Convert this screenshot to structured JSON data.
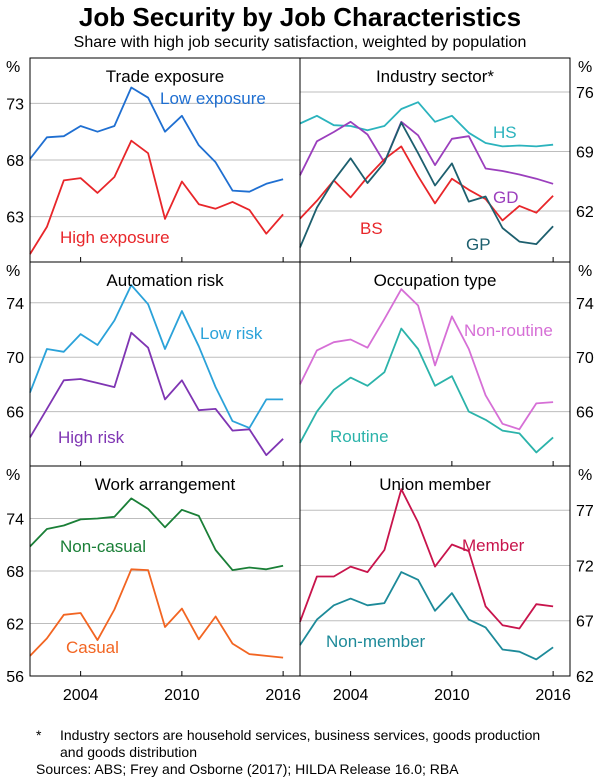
{
  "title": "Job Security by Job Characteristics",
  "subtitle": "Share with high job security satisfaction, weighted by population",
  "unit": "%",
  "x_axis": {
    "ticks": [
      2004,
      2010,
      2016
    ],
    "range": [
      2001,
      2017
    ]
  },
  "footnote_mark": "*",
  "footnote": "Industry sectors are household services, business services, goods production and goods distribution",
  "source": "Sources: ABS; Frey and Osborne (2017); HILDA Release 16.0; RBA",
  "chart_data": [
    {
      "type": "line",
      "title": "Trade exposure",
      "ylim": [
        59,
        77
      ],
      "yticks": [
        63,
        68,
        73
      ],
      "axis": "left",
      "x": [
        2001,
        2002,
        2003,
        2004,
        2005,
        2006,
        2007,
        2008,
        2009,
        2010,
        2011,
        2012,
        2013,
        2014,
        2015,
        2016
      ],
      "series": [
        {
          "name": "Low exposure",
          "color": "#1f6fd1",
          "values": [
            68.1,
            70.0,
            70.1,
            71.0,
            70.5,
            71.0,
            74.4,
            73.5,
            70.5,
            71.9,
            69.3,
            67.8,
            65.3,
            65.2,
            65.9,
            66.3
          ]
        },
        {
          "name": "High exposure",
          "color": "#e8262a",
          "values": [
            59.7,
            62.1,
            66.2,
            66.4,
            65.1,
            66.5,
            69.7,
            68.6,
            62.8,
            66.1,
            64.1,
            63.7,
            64.3,
            63.6,
            61.5,
            63.2
          ]
        }
      ]
    },
    {
      "type": "line",
      "title": "Industry sector",
      "ylim": [
        56,
        80
      ],
      "yticks": [
        62,
        69,
        76
      ],
      "axis": "right",
      "x": [
        2001,
        2002,
        2003,
        2004,
        2005,
        2006,
        2007,
        2008,
        2009,
        2010,
        2011,
        2012,
        2013,
        2014,
        2015,
        2016
      ],
      "series": [
        {
          "name": "HS",
          "color": "#2bb3bd",
          "values": [
            72.3,
            73.2,
            72.1,
            72.0,
            71.5,
            72.0,
            74.0,
            74.8,
            72.5,
            73.2,
            71.2,
            70.0,
            69.6,
            69.7,
            69.6,
            69.8
          ]
        },
        {
          "name": "GD",
          "color": "#9b3fbd",
          "values": [
            66.2,
            70.2,
            71.3,
            72.5,
            71.0,
            67.7,
            72.5,
            70.9,
            67.4,
            70.5,
            70.8,
            67.0,
            66.7,
            66.3,
            65.8,
            65.2
          ]
        },
        {
          "name": "BS",
          "color": "#e8262a",
          "values": [
            61.1,
            63.2,
            65.6,
            63.6,
            66.0,
            68.1,
            69.6,
            66.1,
            62.9,
            65.8,
            64.5,
            63.4,
            60.9,
            62.6,
            61.8,
            63.8
          ]
        },
        {
          "name": "GP",
          "color": "#1d5f6e",
          "values": [
            57.7,
            62.4,
            65.6,
            68.2,
            65.3,
            67.7,
            72.4,
            68.8,
            65.0,
            67.6,
            63.1,
            63.7,
            60.0,
            58.4,
            58.1,
            60.2
          ]
        }
      ]
    },
    {
      "type": "line",
      "title": "Automation risk",
      "ylim": [
        62,
        77
      ],
      "yticks": [
        66,
        70,
        74
      ],
      "axis": "left",
      "x": [
        2001,
        2002,
        2003,
        2004,
        2005,
        2006,
        2007,
        2008,
        2009,
        2010,
        2011,
        2012,
        2013,
        2014,
        2015,
        2016
      ],
      "series": [
        {
          "name": "Low risk",
          "color": "#2ba2d9",
          "values": [
            67.4,
            70.6,
            70.4,
            71.7,
            70.9,
            72.7,
            75.3,
            73.9,
            70.6,
            73.4,
            70.8,
            67.8,
            65.3,
            64.8,
            66.9,
            66.9
          ]
        },
        {
          "name": "High risk",
          "color": "#7f35b3",
          "values": [
            64.1,
            66.2,
            68.3,
            68.4,
            68.1,
            67.8,
            71.8,
            70.7,
            66.9,
            68.3,
            66.1,
            66.2,
            64.6,
            64.7,
            62.8,
            64.0
          ]
        }
      ]
    },
    {
      "type": "line",
      "title": "Occupation type",
      "ylim": [
        62,
        77
      ],
      "yticks": [
        66,
        70,
        74
      ],
      "axis": "right",
      "x": [
        2001,
        2002,
        2003,
        2004,
        2005,
        2006,
        2007,
        2008,
        2009,
        2010,
        2011,
        2012,
        2013,
        2014,
        2015,
        2016
      ],
      "series": [
        {
          "name": "Non-routine",
          "color": "#d66fd6",
          "values": [
            68.0,
            70.5,
            71.1,
            71.3,
            70.7,
            72.8,
            75.0,
            73.8,
            69.4,
            73.0,
            70.6,
            67.2,
            65.1,
            64.7,
            66.6,
            66.7
          ]
        },
        {
          "name": "Routine",
          "color": "#2bb3aa",
          "values": [
            63.7,
            66.0,
            67.6,
            68.5,
            67.9,
            68.9,
            72.1,
            70.6,
            67.9,
            68.6,
            66.0,
            65.4,
            64.6,
            64.4,
            63.0,
            64.1
          ]
        }
      ]
    },
    {
      "type": "line",
      "title": "Work arrangement",
      "ylim": [
        56,
        80
      ],
      "yticks": [
        56,
        62,
        68,
        74
      ],
      "axis": "left",
      "x": [
        2001,
        2002,
        2003,
        2004,
        2005,
        2006,
        2007,
        2008,
        2009,
        2010,
        2011,
        2012,
        2013,
        2014,
        2015,
        2016
      ],
      "series": [
        {
          "name": "Non-casual",
          "color": "#1a7f37",
          "values": [
            70.8,
            72.8,
            73.2,
            73.9,
            74.0,
            74.2,
            76.3,
            75.1,
            73.0,
            75.0,
            74.3,
            70.4,
            68.1,
            68.4,
            68.2,
            68.6
          ]
        },
        {
          "name": "Casual",
          "color": "#f26522",
          "values": [
            58.3,
            60.3,
            63.0,
            63.2,
            60.1,
            63.6,
            68.2,
            68.1,
            61.6,
            63.7,
            60.2,
            62.8,
            59.7,
            58.5,
            58.3,
            58.1
          ]
        }
      ]
    },
    {
      "type": "line",
      "title": "Union member",
      "ylim": [
        62,
        81
      ],
      "yticks": [
        62,
        67,
        72,
        77
      ],
      "axis": "right",
      "x": [
        2001,
        2002,
        2003,
        2004,
        2005,
        2006,
        2007,
        2008,
        2009,
        2010,
        2011,
        2012,
        2013,
        2014,
        2015,
        2016
      ],
      "series": [
        {
          "name": "Member",
          "color": "#c8144c",
          "values": [
            66.9,
            71.0,
            71.0,
            71.9,
            71.4,
            73.4,
            78.9,
            75.9,
            71.9,
            73.9,
            73.3,
            68.3,
            66.6,
            66.3,
            68.5,
            68.3
          ]
        },
        {
          "name": "Non-member",
          "color": "#1d8a99",
          "values": [
            64.8,
            67.1,
            68.4,
            69.0,
            68.4,
            68.6,
            71.4,
            70.7,
            67.9,
            69.5,
            67.1,
            66.4,
            64.4,
            64.2,
            63.5,
            64.6
          ]
        }
      ]
    }
  ]
}
